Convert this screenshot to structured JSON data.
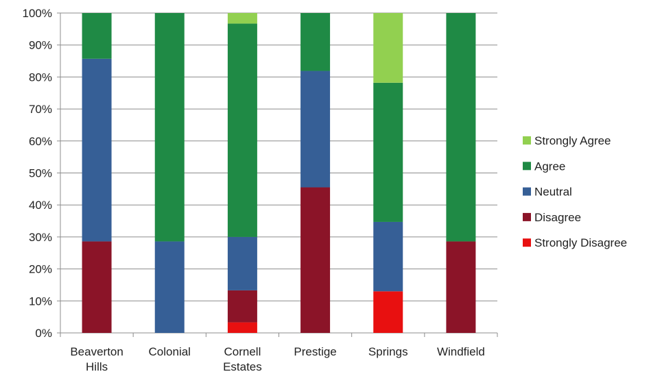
{
  "chart_data": {
    "type": "bar",
    "stacked": true,
    "percent": true,
    "categories": [
      [
        "Beaverton",
        "Hills"
      ],
      [
        "Colonial"
      ],
      [
        "Cornell",
        "Estates"
      ],
      [
        "Prestige"
      ],
      [
        "Springs"
      ],
      [
        "Windfield"
      ]
    ],
    "series": [
      {
        "name": "Strongly Disagree",
        "color": "#e81010",
        "values": [
          0,
          0,
          3.3,
          0,
          13,
          0
        ]
      },
      {
        "name": "Disagree",
        "color": "#8b1428",
        "values": [
          28.6,
          0,
          10,
          45.5,
          0,
          28.6
        ]
      },
      {
        "name": "Neutral",
        "color": "#365f96",
        "values": [
          57.1,
          28.6,
          16.7,
          36.4,
          21.7,
          0
        ]
      },
      {
        "name": "Agree",
        "color": "#1f8a45",
        "values": [
          14.3,
          71.4,
          66.7,
          18.1,
          43.5,
          71.4
        ]
      },
      {
        "name": "Strongly Agree",
        "color": "#92d050",
        "values": [
          0,
          0,
          3.3,
          0,
          21.8,
          0
        ]
      }
    ],
    "yticks": [
      "0%",
      "10%",
      "20%",
      "30%",
      "40%",
      "50%",
      "60%",
      "70%",
      "80%",
      "90%",
      "100%"
    ],
    "ylim": [
      0,
      100
    ],
    "grid": true,
    "legend_position": "right",
    "legend_order": [
      "Strongly Agree",
      "Agree",
      "Neutral",
      "Disagree",
      "Strongly Disagree"
    ]
  }
}
